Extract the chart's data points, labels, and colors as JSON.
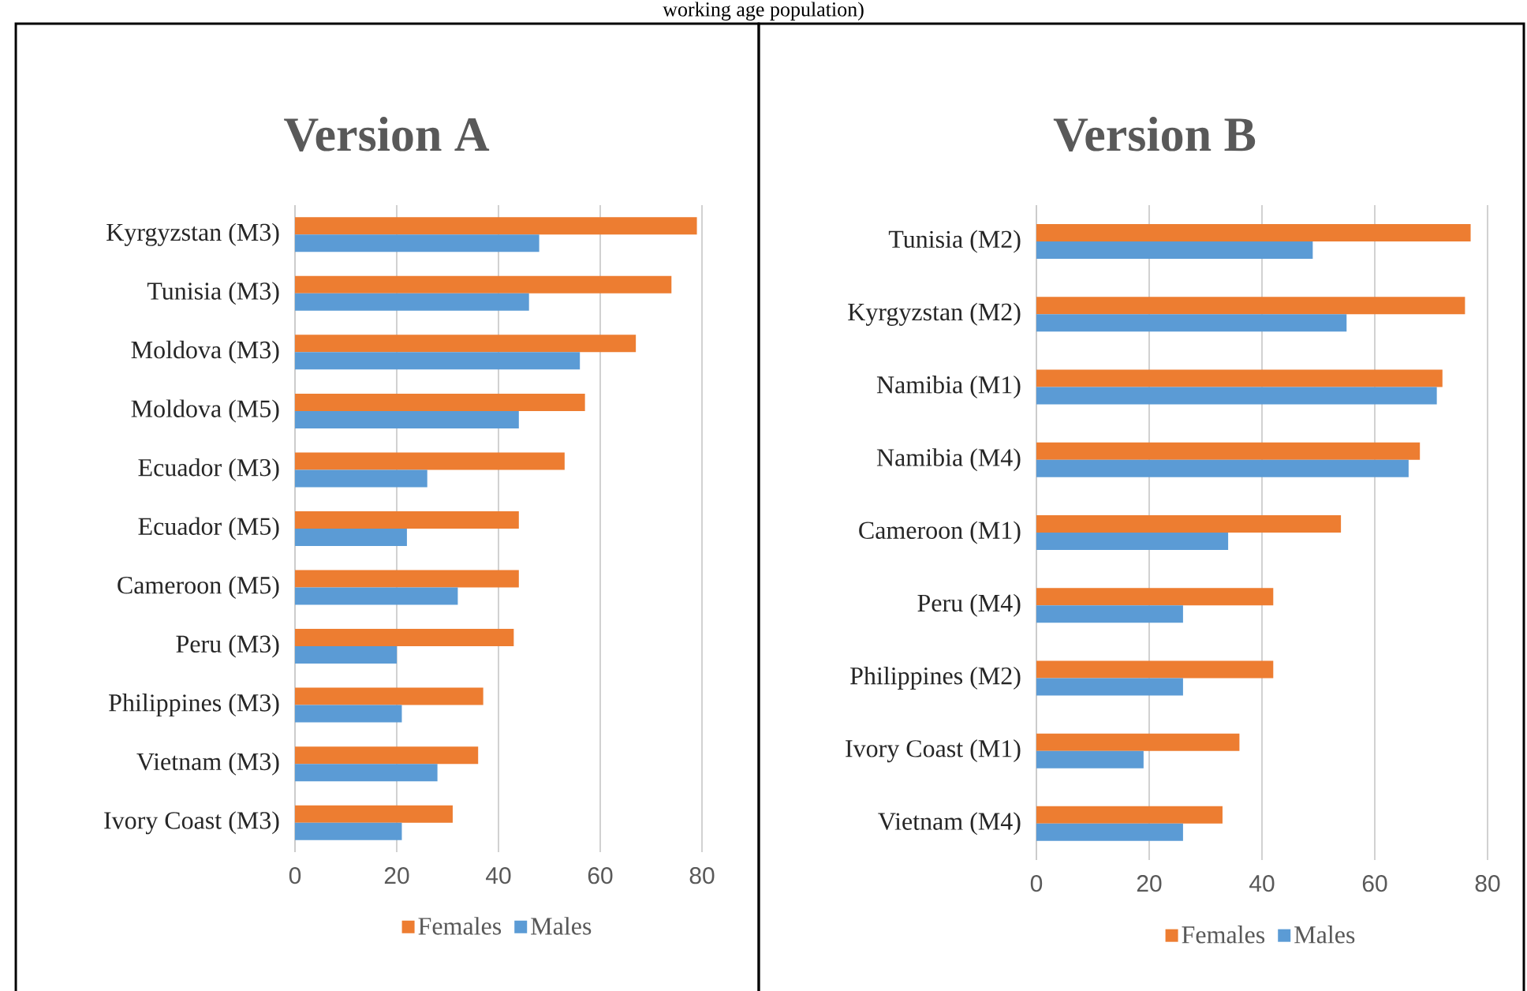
{
  "chart_data": [
    {
      "type": "bar",
      "orientation": "horizontal",
      "title": "Version A",
      "annotations": [
        "working age population)"
      ],
      "categories": [
        "Kyrgyzstan (M3)",
        "Tunisia (M3)",
        "Moldova (M3)",
        "Moldova (M5)",
        "Ecuador (M3)",
        "Ecuador (M5)",
        "Cameroon (M5)",
        "Peru (M3)",
        "Philippines (M3)",
        "Vietnam (M3)",
        "Ivory Coast (M3)"
      ],
      "series": [
        {
          "name": "Females",
          "color": "#ed7d31",
          "values": [
            79,
            74,
            67,
            57,
            53,
            44,
            44,
            43,
            37,
            36,
            31
          ]
        },
        {
          "name": "Males",
          "color": "#5b9bd5",
          "values": [
            48,
            46,
            56,
            44,
            26,
            22,
            32,
            20,
            21,
            28,
            21
          ]
        }
      ],
      "xlim": [
        0,
        80
      ],
      "xticks": [
        0,
        20,
        40,
        60,
        80
      ],
      "grid": "x",
      "legend": "bottom"
    },
    {
      "type": "bar",
      "orientation": "horizontal",
      "title": "Version B",
      "categories": [
        "Tunisia (M2)",
        "Kyrgyzstan (M2)",
        "Namibia (M1)",
        "Namibia (M4)",
        "Cameroon (M1)",
        "Peru (M4)",
        "Philippines (M2)",
        "Ivory Coast (M1)",
        "Vietnam (M4)"
      ],
      "series": [
        {
          "name": "Females",
          "color": "#ed7d31",
          "values": [
            77,
            76,
            72,
            68,
            54,
            42,
            42,
            36,
            33
          ]
        },
        {
          "name": "Males",
          "color": "#5b9bd5",
          "values": [
            49,
            55,
            71,
            66,
            34,
            26,
            26,
            19,
            26
          ]
        }
      ],
      "xlim": [
        0,
        80
      ],
      "xticks": [
        0,
        20,
        40,
        60,
        80
      ],
      "grid": "x",
      "legend": "bottom"
    }
  ]
}
